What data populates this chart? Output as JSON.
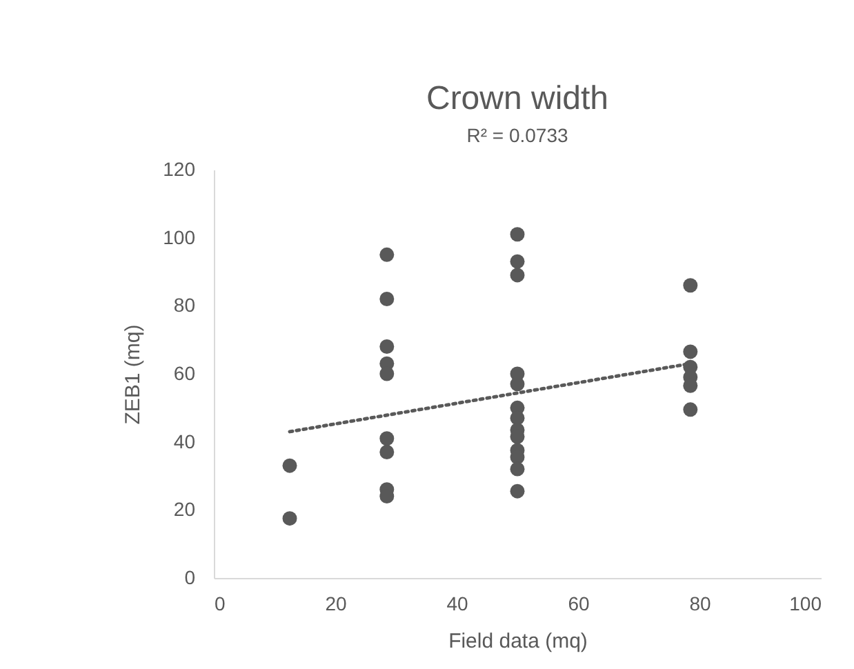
{
  "chart_data": {
    "type": "scatter",
    "title": "Crown width",
    "subtitle": "R² = 0.0733",
    "xlabel": "Field data (mq)",
    "ylabel": "ZEB1 (mq)",
    "xlim": [
      0,
      100
    ],
    "xticks": [
      0,
      20,
      40,
      60,
      80,
      100
    ],
    "ylim": [
      0,
      120
    ],
    "yticks": [
      0,
      20,
      40,
      60,
      80,
      100,
      120
    ],
    "grid": false,
    "marker": "circle",
    "series": [
      {
        "color": "#595959",
        "x": [
          12.5,
          12.5,
          28.5,
          28.5,
          28.5,
          28.5,
          28.5,
          28.5,
          28.5,
          28.5,
          28.5,
          50,
          50,
          50,
          50,
          50,
          50,
          50,
          50,
          50,
          50,
          50,
          50,
          50,
          78.5,
          78.5,
          78.5,
          78.5,
          78.5,
          78.5
        ],
        "values": [
          33,
          17.5,
          95,
          82,
          68,
          63,
          60,
          41,
          37,
          26,
          24,
          101,
          93,
          89,
          60,
          57,
          50,
          47,
          43.5,
          41.5,
          37.5,
          35.5,
          32,
          25.5,
          86,
          66.5,
          62,
          59,
          56.5,
          49.5
        ]
      },
      {
        "type": "line",
        "color": "#595959",
        "line_style": "dotted",
        "marker": "none",
        "x": [
          12.5,
          78.5
        ],
        "values": [
          43,
          63
        ]
      }
    ]
  }
}
